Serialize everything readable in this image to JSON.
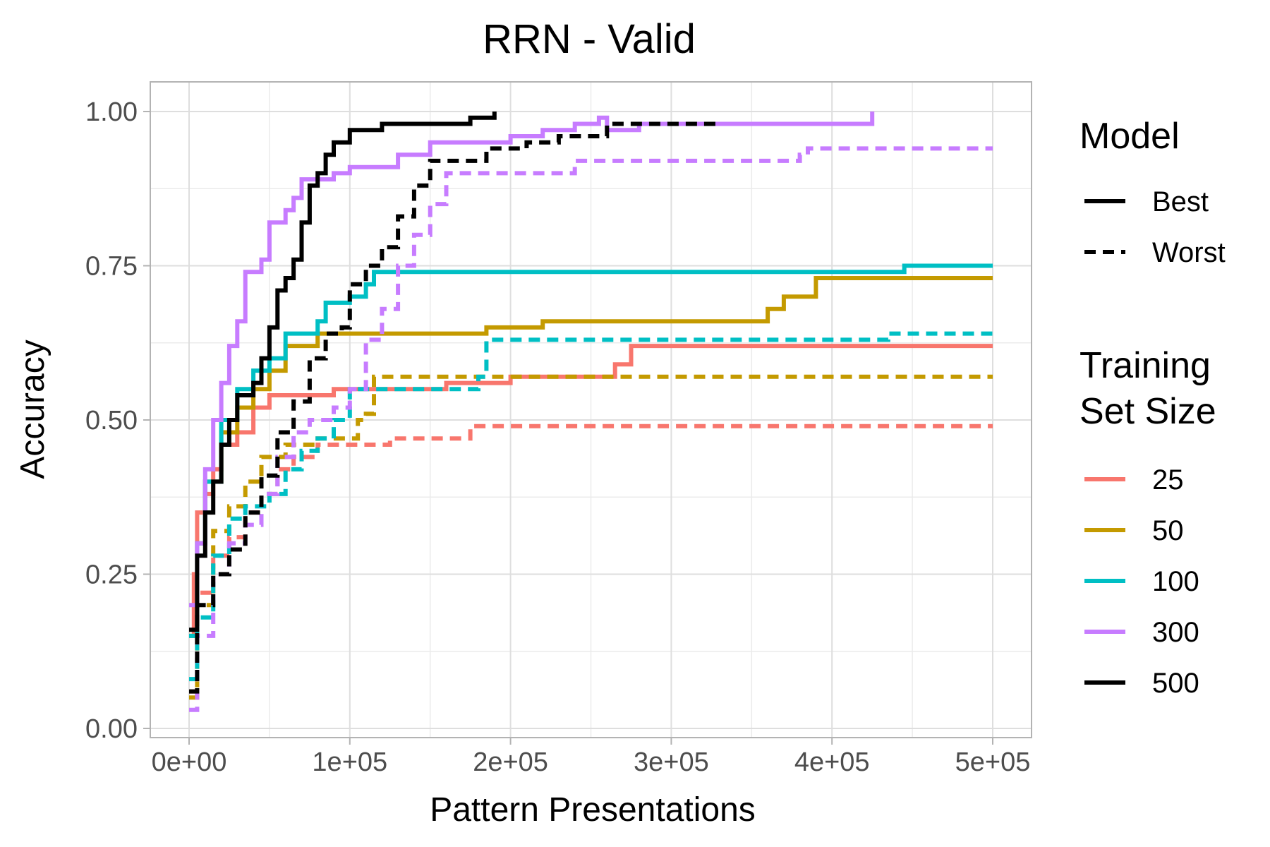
{
  "chart_data": {
    "type": "line",
    "title": "RRN - Valid",
    "xlabel": "Pattern Presentations",
    "ylabel": "Accuracy",
    "xlim": [
      0,
      500000
    ],
    "ylim": [
      0,
      1
    ],
    "xticks": [
      0,
      100000,
      200000,
      300000,
      400000,
      500000
    ],
    "xtick_labels": [
      "0e+00",
      "1e+05",
      "2e+05",
      "3e+05",
      "4e+05",
      "5e+05"
    ],
    "yticks": [
      0,
      0.25,
      0.5,
      0.75,
      1
    ],
    "ytick_labels": [
      "0.00",
      "0.25",
      "0.50",
      "0.75",
      "1.00"
    ],
    "grid": true,
    "legend_position": "right",
    "legend_model": {
      "title": "Model",
      "items": [
        {
          "label": "Best",
          "dash": "solid"
        },
        {
          "label": "Worst",
          "dash": "dashed"
        }
      ]
    },
    "legend_size": {
      "title_lines": [
        "Training",
        "Set Size"
      ],
      "items": [
        {
          "label": "25",
          "color": "#F8766D"
        },
        {
          "label": "50",
          "color": "#C49A00"
        },
        {
          "label": "100",
          "color": "#00BFC4"
        },
        {
          "label": "300",
          "color": "#C77CFF"
        },
        {
          "label": "500",
          "color": "#000000"
        }
      ]
    },
    "series": [
      {
        "size": "25",
        "model": "Best",
        "color": "#F8766D",
        "dash": "solid",
        "points": [
          [
            0,
            0.15
          ],
          [
            3000,
            0.25
          ],
          [
            5000,
            0.35
          ],
          [
            10000,
            0.38
          ],
          [
            15000,
            0.42
          ],
          [
            20000,
            0.46
          ],
          [
            30000,
            0.48
          ],
          [
            40000,
            0.52
          ],
          [
            50000,
            0.54
          ],
          [
            90000,
            0.55
          ],
          [
            120000,
            0.55
          ],
          [
            160000,
            0.56
          ],
          [
            200000,
            0.57
          ],
          [
            265000,
            0.59
          ],
          [
            275000,
            0.62
          ],
          [
            500000,
            0.62
          ]
        ]
      },
      {
        "size": "25",
        "model": "Worst",
        "color": "#F8766D",
        "dash": "dashed",
        "points": [
          [
            0,
            0.06
          ],
          [
            5000,
            0.22
          ],
          [
            15000,
            0.28
          ],
          [
            25000,
            0.31
          ],
          [
            35000,
            0.35
          ],
          [
            45000,
            0.38
          ],
          [
            55000,
            0.42
          ],
          [
            65000,
            0.44
          ],
          [
            80000,
            0.46
          ],
          [
            120000,
            0.46
          ],
          [
            125000,
            0.47
          ],
          [
            170000,
            0.47
          ],
          [
            175000,
            0.49
          ],
          [
            500000,
            0.49
          ]
        ]
      },
      {
        "size": "50",
        "model": "Best",
        "color": "#C49A00",
        "dash": "solid",
        "points": [
          [
            0,
            0.15
          ],
          [
            5000,
            0.3
          ],
          [
            10000,
            0.4
          ],
          [
            20000,
            0.48
          ],
          [
            30000,
            0.52
          ],
          [
            40000,
            0.55
          ],
          [
            50000,
            0.58
          ],
          [
            60000,
            0.62
          ],
          [
            80000,
            0.64
          ],
          [
            180000,
            0.64
          ],
          [
            185000,
            0.65
          ],
          [
            215000,
            0.65
          ],
          [
            220000,
            0.66
          ],
          [
            355000,
            0.66
          ],
          [
            360000,
            0.68
          ],
          [
            370000,
            0.7
          ],
          [
            390000,
            0.73
          ],
          [
            500000,
            0.73
          ]
        ]
      },
      {
        "size": "50",
        "model": "Worst",
        "color": "#C49A00",
        "dash": "dashed",
        "points": [
          [
            0,
            0.05
          ],
          [
            5000,
            0.2
          ],
          [
            15000,
            0.32
          ],
          [
            25000,
            0.36
          ],
          [
            35000,
            0.4
          ],
          [
            45000,
            0.44
          ],
          [
            60000,
            0.46
          ],
          [
            80000,
            0.47
          ],
          [
            100000,
            0.47
          ],
          [
            105000,
            0.5
          ],
          [
            110000,
            0.51
          ],
          [
            115000,
            0.57
          ],
          [
            500000,
            0.57
          ]
        ]
      },
      {
        "size": "100",
        "model": "Best",
        "color": "#00BFC4",
        "dash": "solid",
        "points": [
          [
            0,
            0.15
          ],
          [
            5000,
            0.3
          ],
          [
            10000,
            0.4
          ],
          [
            20000,
            0.5
          ],
          [
            30000,
            0.55
          ],
          [
            40000,
            0.58
          ],
          [
            50000,
            0.6
          ],
          [
            60000,
            0.64
          ],
          [
            80000,
            0.66
          ],
          [
            85000,
            0.69
          ],
          [
            100000,
            0.7
          ],
          [
            110000,
            0.72
          ],
          [
            115000,
            0.74
          ],
          [
            440000,
            0.74
          ],
          [
            445000,
            0.75
          ],
          [
            500000,
            0.75
          ]
        ]
      },
      {
        "size": "100",
        "model": "Worst",
        "color": "#00BFC4",
        "dash": "dashed",
        "points": [
          [
            0,
            0.08
          ],
          [
            5000,
            0.18
          ],
          [
            15000,
            0.28
          ],
          [
            25000,
            0.34
          ],
          [
            35000,
            0.36
          ],
          [
            50000,
            0.38
          ],
          [
            60000,
            0.42
          ],
          [
            70000,
            0.45
          ],
          [
            80000,
            0.47
          ],
          [
            90000,
            0.5
          ],
          [
            100000,
            0.55
          ],
          [
            175000,
            0.55
          ],
          [
            180000,
            0.57
          ],
          [
            185000,
            0.63
          ],
          [
            430000,
            0.63
          ],
          [
            435000,
            0.64
          ],
          [
            500000,
            0.64
          ]
        ]
      },
      {
        "size": "300",
        "model": "Best",
        "color": "#C77CFF",
        "dash": "solid",
        "points": [
          [
            0,
            0.2
          ],
          [
            5000,
            0.3
          ],
          [
            10000,
            0.42
          ],
          [
            15000,
            0.5
          ],
          [
            20000,
            0.56
          ],
          [
            25000,
            0.62
          ],
          [
            30000,
            0.66
          ],
          [
            35000,
            0.74
          ],
          [
            45000,
            0.76
          ],
          [
            50000,
            0.82
          ],
          [
            60000,
            0.84
          ],
          [
            65000,
            0.86
          ],
          [
            70000,
            0.89
          ],
          [
            90000,
            0.9
          ],
          [
            100000,
            0.91
          ],
          [
            130000,
            0.93
          ],
          [
            150000,
            0.95
          ],
          [
            200000,
            0.96
          ],
          [
            220000,
            0.97
          ],
          [
            240000,
            0.98
          ],
          [
            255000,
            0.99
          ],
          [
            260000,
            0.97
          ],
          [
            280000,
            0.98
          ],
          [
            420000,
            0.98
          ],
          [
            425000,
            1.0
          ]
        ]
      },
      {
        "size": "300",
        "model": "Worst",
        "color": "#C77CFF",
        "dash": "dashed",
        "points": [
          [
            0,
            0.03
          ],
          [
            5000,
            0.15
          ],
          [
            15000,
            0.25
          ],
          [
            25000,
            0.3
          ],
          [
            35000,
            0.33
          ],
          [
            45000,
            0.38
          ],
          [
            55000,
            0.44
          ],
          [
            65000,
            0.48
          ],
          [
            75000,
            0.5
          ],
          [
            90000,
            0.52
          ],
          [
            100000,
            0.55
          ],
          [
            110000,
            0.63
          ],
          [
            120000,
            0.68
          ],
          [
            130000,
            0.75
          ],
          [
            140000,
            0.8
          ],
          [
            150000,
            0.85
          ],
          [
            160000,
            0.9
          ],
          [
            235000,
            0.9
          ],
          [
            240000,
            0.92
          ],
          [
            380000,
            0.93
          ],
          [
            385000,
            0.94
          ],
          [
            500000,
            0.94
          ]
        ]
      },
      {
        "size": "500",
        "model": "Best",
        "color": "#000000",
        "dash": "solid",
        "points": [
          [
            0,
            0.16
          ],
          [
            5000,
            0.28
          ],
          [
            10000,
            0.35
          ],
          [
            15000,
            0.4
          ],
          [
            20000,
            0.46
          ],
          [
            25000,
            0.5
          ],
          [
            30000,
            0.54
          ],
          [
            40000,
            0.56
          ],
          [
            45000,
            0.6
          ],
          [
            50000,
            0.65
          ],
          [
            55000,
            0.71
          ],
          [
            60000,
            0.73
          ],
          [
            65000,
            0.76
          ],
          [
            70000,
            0.82
          ],
          [
            75000,
            0.88
          ],
          [
            80000,
            0.9
          ],
          [
            85000,
            0.93
          ],
          [
            90000,
            0.95
          ],
          [
            100000,
            0.97
          ],
          [
            120000,
            0.98
          ],
          [
            175000,
            0.99
          ],
          [
            190000,
            1.0
          ]
        ]
      },
      {
        "size": "500",
        "model": "Worst",
        "color": "#000000",
        "dash": "dashed",
        "points": [
          [
            0,
            0.06
          ],
          [
            5000,
            0.2
          ],
          [
            15000,
            0.25
          ],
          [
            25000,
            0.29
          ],
          [
            35000,
            0.35
          ],
          [
            45000,
            0.41
          ],
          [
            55000,
            0.48
          ],
          [
            65000,
            0.53
          ],
          [
            75000,
            0.6
          ],
          [
            85000,
            0.64
          ],
          [
            95000,
            0.65
          ],
          [
            100000,
            0.72
          ],
          [
            110000,
            0.75
          ],
          [
            120000,
            0.78
          ],
          [
            130000,
            0.83
          ],
          [
            140000,
            0.88
          ],
          [
            150000,
            0.92
          ],
          [
            185000,
            0.94
          ],
          [
            210000,
            0.95
          ],
          [
            230000,
            0.96
          ],
          [
            260000,
            0.98
          ],
          [
            330000,
            0.98
          ]
        ]
      }
    ]
  }
}
